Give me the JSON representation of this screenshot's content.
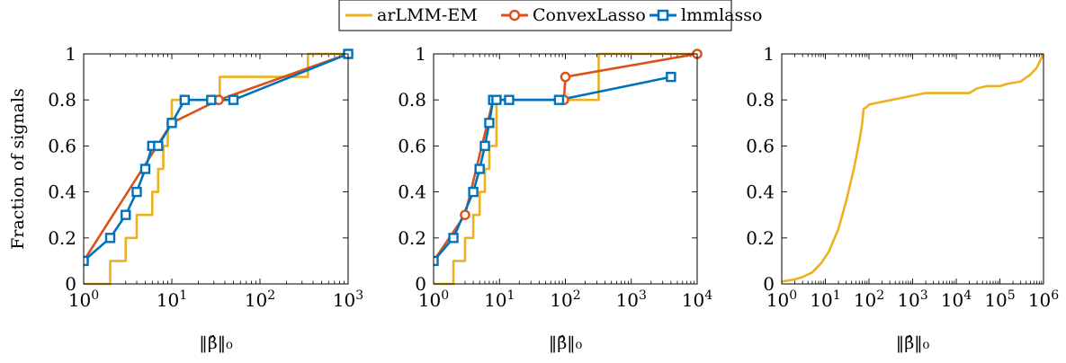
{
  "legend": {
    "entries": [
      {
        "name": "arLMM-EM",
        "color": "#EDB120",
        "marker": "none"
      },
      {
        "name": "ConvexLasso",
        "color": "#D95319",
        "marker": "circle"
      },
      {
        "name": "lmmlasso",
        "color": "#0072BD",
        "marker": "square"
      }
    ]
  },
  "chart_data": [
    {
      "type": "line",
      "xscale": "log",
      "xlim": [
        1,
        1000
      ],
      "ylim": [
        0,
        1
      ],
      "ylabel": "Fraction of signals",
      "xlabel": "‖β̂‖₀",
      "xticks": [
        {
          "v": 1,
          "base": "10",
          "exp": "0"
        },
        {
          "v": 10,
          "base": "10",
          "exp": "1"
        },
        {
          "v": 100,
          "base": "10",
          "exp": "2"
        },
        {
          "v": 1000,
          "base": "10",
          "exp": "3"
        }
      ],
      "yticks": [
        "0",
        "0.2",
        "0.4",
        "0.6",
        "0.8",
        "1"
      ],
      "series": [
        {
          "name": "arLMM-EM",
          "style": "step",
          "points": [
            [
              1,
              0
            ],
            [
              2,
              0.1
            ],
            [
              3,
              0.2
            ],
            [
              4,
              0.3
            ],
            [
              5,
              0.3
            ],
            [
              6,
              0.4
            ],
            [
              7,
              0.5
            ],
            [
              8,
              0.6
            ],
            [
              9,
              0.7
            ],
            [
              10,
              0.8
            ],
            [
              35,
              0.8
            ],
            [
              35,
              0.9
            ],
            [
              350,
              0.9
            ],
            [
              350,
              1
            ],
            [
              1000,
              1
            ]
          ]
        },
        {
          "name": "ConvexLasso",
          "style": "line",
          "points": [
            [
              1,
              0.1
            ],
            [
              10,
              0.7
            ],
            [
              34,
              0.8
            ],
            [
              1000,
              1
            ]
          ],
          "markers": [
            [
              1,
              0.1
            ],
            [
              10,
              0.7
            ],
            [
              34,
              0.8
            ],
            [
              1000,
              1
            ]
          ]
        },
        {
          "name": "lmmlasso",
          "style": "line",
          "points": [
            [
              1,
              0.1
            ],
            [
              2,
              0.2
            ],
            [
              3,
              0.3
            ],
            [
              4,
              0.4
            ],
            [
              5,
              0.5
            ],
            [
              6,
              0.6
            ],
            [
              7,
              0.6
            ],
            [
              10,
              0.7
            ],
            [
              14,
              0.8
            ],
            [
              28,
              0.8
            ],
            [
              50,
              0.8
            ],
            [
              1000,
              1
            ]
          ],
          "markers": [
            [
              1,
              0.1
            ],
            [
              2,
              0.2
            ],
            [
              3,
              0.3
            ],
            [
              4,
              0.4
            ],
            [
              5,
              0.5
            ],
            [
              6,
              0.6
            ],
            [
              7,
              0.6
            ],
            [
              10,
              0.7
            ],
            [
              14,
              0.8
            ],
            [
              28,
              0.8
            ],
            [
              50,
              0.8
            ],
            [
              1000,
              1
            ]
          ]
        }
      ]
    },
    {
      "type": "line",
      "xscale": "log",
      "xlim": [
        1,
        10000
      ],
      "ylim": [
        0,
        1
      ],
      "xlabel": "‖β̂‖₀",
      "xticks": [
        {
          "v": 1,
          "base": "10",
          "exp": "0"
        },
        {
          "v": 10,
          "base": "10",
          "exp": "1"
        },
        {
          "v": 100,
          "base": "10",
          "exp": "2"
        },
        {
          "v": 1000,
          "base": "10",
          "exp": "3"
        },
        {
          "v": 10000,
          "base": "10",
          "exp": "4"
        }
      ],
      "yticks": [
        "0",
        "0.2",
        "0.4",
        "0.6",
        "0.8",
        "1"
      ],
      "series": [
        {
          "name": "arLMM-EM",
          "style": "step",
          "points": [
            [
              1,
              0
            ],
            [
              2,
              0.1
            ],
            [
              3,
              0.2
            ],
            [
              4,
              0.3
            ],
            [
              5,
              0.4
            ],
            [
              6,
              0.5
            ],
            [
              7,
              0.6
            ],
            [
              9,
              0.6
            ],
            [
              9,
              0.8
            ],
            [
              320,
              0.8
            ],
            [
              320,
              1
            ],
            [
              10000,
              1
            ]
          ]
        },
        {
          "name": "ConvexLasso",
          "style": "line",
          "points": [
            [
              1,
              0.1
            ],
            [
              3,
              0.3
            ],
            [
              8,
              0.8
            ],
            [
              95,
              0.8
            ],
            [
              100,
              0.9
            ],
            [
              10000,
              1
            ]
          ],
          "markers": [
            [
              3,
              0.3
            ],
            [
              95,
              0.8
            ],
            [
              100,
              0.9
            ],
            [
              10000,
              1
            ]
          ]
        },
        {
          "name": "lmmlasso",
          "style": "line",
          "points": [
            [
              1,
              0.1
            ],
            [
              2,
              0.2
            ],
            [
              4,
              0.4
            ],
            [
              5,
              0.5
            ],
            [
              6,
              0.6
            ],
            [
              7,
              0.7
            ],
            [
              8,
              0.8
            ],
            [
              9,
              0.8
            ],
            [
              14,
              0.8
            ],
            [
              80,
              0.8
            ],
            [
              4000,
              0.9
            ]
          ],
          "markers": [
            [
              1,
              0.1
            ],
            [
              2,
              0.2
            ],
            [
              4,
              0.4
            ],
            [
              5,
              0.5
            ],
            [
              6,
              0.6
            ],
            [
              7,
              0.7
            ],
            [
              8,
              0.8
            ],
            [
              9,
              0.8
            ],
            [
              14,
              0.8
            ],
            [
              80,
              0.8
            ],
            [
              4000,
              0.9
            ]
          ]
        }
      ]
    },
    {
      "type": "line",
      "xscale": "log",
      "xlim": [
        1,
        1000000
      ],
      "ylim": [
        0,
        1
      ],
      "xlabel": "‖β̂‖₀",
      "xticks": [
        {
          "v": 1,
          "base": "10",
          "exp": "0"
        },
        {
          "v": 10,
          "base": "10",
          "exp": "1"
        },
        {
          "v": 100,
          "base": "10",
          "exp": "2"
        },
        {
          "v": 1000,
          "base": "10",
          "exp": "3"
        },
        {
          "v": 10000,
          "base": "10",
          "exp": "4"
        },
        {
          "v": 100000,
          "base": "10",
          "exp": "5"
        },
        {
          "v": 1000000,
          "base": "10",
          "exp": "6"
        }
      ],
      "yticks": [
        "0",
        "0.2",
        "0.4",
        "0.6",
        "0.8",
        "1"
      ],
      "series": [
        {
          "name": "arLMM-EM",
          "style": "line",
          "points": [
            [
              1,
              0.01
            ],
            [
              2,
              0.02
            ],
            [
              3,
              0.03
            ],
            [
              5,
              0.05
            ],
            [
              8,
              0.09
            ],
            [
              12,
              0.14
            ],
            [
              20,
              0.24
            ],
            [
              30,
              0.36
            ],
            [
              45,
              0.5
            ],
            [
              60,
              0.62
            ],
            [
              70,
              0.7
            ],
            [
              75,
              0.76
            ],
            [
              90,
              0.77
            ],
            [
              100,
              0.78
            ],
            [
              2000,
              0.83
            ],
            [
              20000,
              0.83
            ],
            [
              30000,
              0.85
            ],
            [
              50000,
              0.86
            ],
            [
              100000,
              0.86
            ],
            [
              150000,
              0.87
            ],
            [
              300000,
              0.88
            ],
            [
              500000,
              0.91
            ],
            [
              700000,
              0.94
            ],
            [
              1000000,
              1
            ]
          ]
        }
      ]
    }
  ]
}
